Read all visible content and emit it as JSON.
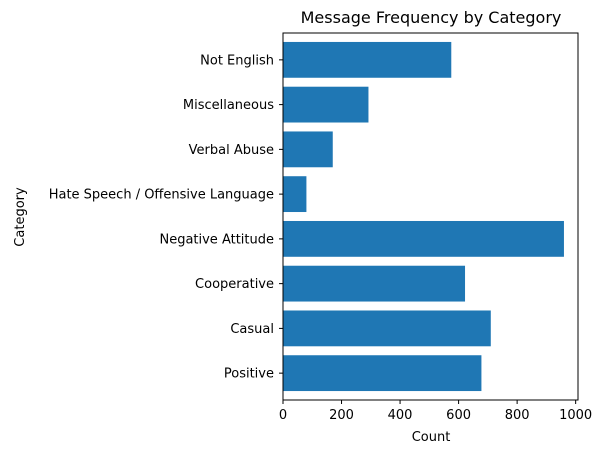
{
  "chart_data": {
    "type": "bar",
    "orientation": "horizontal",
    "title": "Message Frequency by Category",
    "xlabel": "Count",
    "ylabel": "Category",
    "categories": [
      "Positive",
      "Casual",
      "Cooperative",
      "Negative Attitude",
      "Hate Speech / Offensive Language",
      "Verbal Abuse",
      "Miscellaneous",
      "Not English"
    ],
    "values": [
      678,
      710,
      622,
      960,
      80,
      170,
      292,
      575
    ],
    "xlim": [
      0,
      1008
    ],
    "xticks": [
      0,
      200,
      400,
      600,
      800,
      1000
    ],
    "xtick_labels": [
      "0",
      "200",
      "400",
      "600",
      "800",
      "1000"
    ],
    "grid": false,
    "bar_color": "#1f77b4"
  }
}
